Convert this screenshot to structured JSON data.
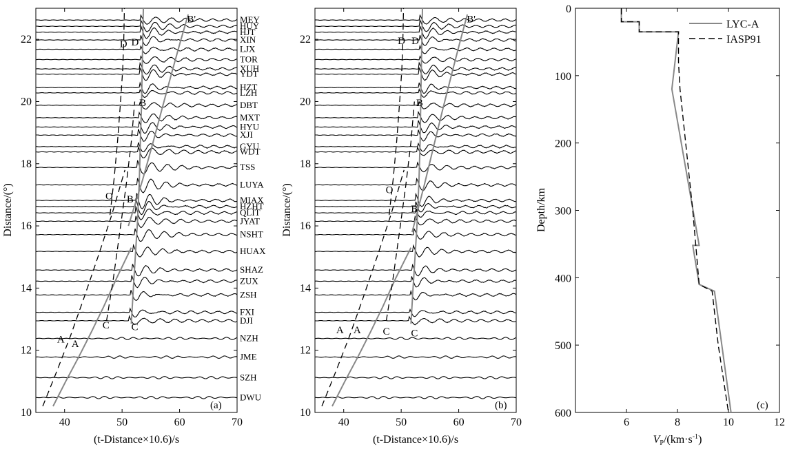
{
  "colors": {
    "gray_model": "#888888",
    "black": "#000000",
    "background": "#ffffff"
  },
  "panels": [
    {
      "id": "a",
      "panel_label": "(a)",
      "xlabel": "(t-Distance×10.6)/s",
      "ylabel": "Distance/(°)",
      "xlim": [
        35,
        70
      ],
      "ylim": [
        10,
        23
      ],
      "xticks": [
        "40",
        "50",
        "60",
        "70"
      ],
      "yticks": [
        "10",
        "12",
        "14",
        "16",
        "18",
        "20",
        "22"
      ],
      "branch_labels": [
        {
          "text": "A",
          "x": 38.7,
          "y": 12.25,
          "color": "black"
        },
        {
          "text": "A",
          "x": 41.2,
          "y": 12.1,
          "color": "gray"
        },
        {
          "text": "C",
          "x": 46.6,
          "y": 12.7,
          "color": "black"
        },
        {
          "text": "C",
          "x": 51.6,
          "y": 12.65,
          "color": "gray"
        },
        {
          "text": "O",
          "x": 47.1,
          "y": 16.85,
          "color": "black"
        },
        {
          "text": "B",
          "x": 50.8,
          "y": 16.75,
          "color": "gray"
        },
        {
          "text": "B",
          "x": 53.0,
          "y": 19.85,
          "color": "black"
        },
        {
          "text": "D",
          "x": 49.6,
          "y": 21.75,
          "color": "black"
        },
        {
          "text": "D",
          "x": 51.6,
          "y": 21.8,
          "color": "gray"
        },
        {
          "text": "B'",
          "x": 61.3,
          "y": 22.55,
          "color": "gray"
        }
      ]
    },
    {
      "id": "b",
      "panel_label": "(b)",
      "xlabel": "(t-Distance×10.6)/s",
      "ylabel": "Distance/(°)",
      "xlim": [
        35,
        70
      ],
      "ylim": [
        10,
        23
      ],
      "xticks": [
        "40",
        "50",
        "60",
        "70"
      ],
      "yticks": [
        "10",
        "12",
        "14",
        "16",
        "18",
        "20",
        "22"
      ],
      "branch_labels": [
        {
          "text": "A",
          "x": 38.7,
          "y": 12.55,
          "color": "black"
        },
        {
          "text": "A",
          "x": 41.7,
          "y": 12.55,
          "color": "gray"
        },
        {
          "text": "C",
          "x": 46.8,
          "y": 12.5,
          "color": "black"
        },
        {
          "text": "C",
          "x": 51.7,
          "y": 12.45,
          "color": "gray"
        },
        {
          "text": "O",
          "x": 47.3,
          "y": 17.05,
          "color": "black"
        },
        {
          "text": "B",
          "x": 51.7,
          "y": 16.45,
          "color": "gray"
        },
        {
          "text": "B",
          "x": 52.6,
          "y": 19.85,
          "color": "black"
        },
        {
          "text": "D",
          "x": 49.4,
          "y": 21.85,
          "color": "black"
        },
        {
          "text": "D",
          "x": 51.8,
          "y": 21.85,
          "color": "gray"
        },
        {
          "text": "B'",
          "x": 61.4,
          "y": 22.55,
          "color": "gray"
        }
      ]
    },
    {
      "id": "c",
      "panel_label": "(c)",
      "xlabel_v": "V",
      "xlabel_sub": "P",
      "xlabel_rest": "/(km·s",
      "xlabel_exp": "-1",
      "xlabel_end": ")",
      "ylabel": "Depth/km",
      "xlim": [
        4,
        12
      ],
      "ylim": [
        600,
        0
      ],
      "xticks": [
        "6",
        "8",
        "10",
        "12"
      ],
      "yticks": [
        "0",
        "100",
        "200",
        "300",
        "400",
        "500",
        "600"
      ]
    }
  ],
  "stations": [
    {
      "name": "MEY",
      "distance": 22.62
    },
    {
      "name": "HUY",
      "distance": 22.42
    },
    {
      "name": "HJT",
      "distance": 22.23
    },
    {
      "name": "XIN",
      "distance": 21.98
    },
    {
      "name": "LJX",
      "distance": 21.68
    },
    {
      "name": "TOR",
      "distance": 21.35
    },
    {
      "name": "XUH",
      "distance": 21.05
    },
    {
      "name": "YDT",
      "distance": 20.88
    },
    {
      "name": "HZT",
      "distance": 20.45
    },
    {
      "name": "LZH",
      "distance": 20.28
    },
    {
      "name": "DBT",
      "distance": 19.88
    },
    {
      "name": "MXT",
      "distance": 19.48
    },
    {
      "name": "HYU",
      "distance": 19.18
    },
    {
      "name": "XJI",
      "distance": 18.92
    },
    {
      "name": "GYU",
      "distance": 18.55
    },
    {
      "name": "WDT",
      "distance": 18.38
    },
    {
      "name": "TSS",
      "distance": 17.88
    },
    {
      "name": "LUYA",
      "distance": 17.32
    },
    {
      "name": "MIAX",
      "distance": 16.82
    },
    {
      "name": "HZHT",
      "distance": 16.62
    },
    {
      "name": "QLIT",
      "distance": 16.42
    },
    {
      "name": "JYAT",
      "distance": 16.15
    },
    {
      "name": "NSHT",
      "distance": 15.72
    },
    {
      "name": "HUAX",
      "distance": 15.18
    },
    {
      "name": "SHAZ",
      "distance": 14.58
    },
    {
      "name": "ZUX",
      "distance": 14.22
    },
    {
      "name": "ZSH",
      "distance": 13.78
    },
    {
      "name": "FXI",
      "distance": 13.22
    },
    {
      "name": "DJI",
      "distance": 12.95
    },
    {
      "name": "NZH",
      "distance": 12.38
    },
    {
      "name": "JME",
      "distance": 11.78
    },
    {
      "name": "SZH",
      "distance": 11.12
    },
    {
      "name": "DWU",
      "distance": 10.48
    }
  ],
  "chart_data": [
    {
      "panel": "a",
      "type": "line",
      "description_of_series": "Seismic record section; waveforms at station distances with predicted travel-time branches",
      "series": [
        {
          "style": "gray",
          "branch": "A-C",
          "x": [
            38.0,
            40.2,
            42.5,
            44.7,
            46.8,
            49.0,
            51.6
          ],
          "y": [
            10.2,
            11.0,
            11.8,
            12.6,
            13.4,
            14.3,
            15.3
          ]
        },
        {
          "style": "gray",
          "branch": "C-D",
          "x": [
            51.6,
            51.9,
            52.3,
            52.7,
            53.0,
            53.2,
            53.4,
            53.5,
            53.6,
            53.7
          ],
          "y": [
            12.85,
            13.8,
            15.0,
            16.2,
            17.5,
            18.8,
            20.0,
            21.0,
            22.0,
            23.0
          ]
        },
        {
          "style": "gray",
          "branch": "B-B'",
          "x": [
            51.1,
            53.6,
            55.4,
            57.0,
            58.6,
            60.1,
            61.5
          ],
          "y": [
            16.0,
            17.5,
            18.7,
            19.8,
            20.9,
            21.9,
            22.8
          ]
        },
        {
          "style": "black-dashed",
          "branch": "A",
          "x": [
            36.2,
            38.6,
            41.0,
            43.4,
            45.8,
            48.2,
            50.5
          ],
          "y": [
            10.2,
            11.3,
            12.45,
            13.7,
            15.0,
            16.35,
            17.8
          ]
        },
        {
          "style": "black-dashed",
          "branch": "C-B",
          "x": [
            47.3,
            48.4,
            49.6,
            50.7,
            51.6,
            52.2
          ],
          "y": [
            12.95,
            14.2,
            15.8,
            17.3,
            18.7,
            20.0
          ]
        },
        {
          "style": "black-dashed",
          "branch": "O-D",
          "x": [
            47.9,
            48.6,
            49.2,
            49.7,
            50.1,
            50.3,
            50.4
          ],
          "y": [
            16.35,
            17.5,
            18.7,
            19.9,
            21.0,
            22.0,
            23.0
          ]
        }
      ]
    },
    {
      "panel": "b",
      "type": "line",
      "series": [
        {
          "style": "gray",
          "branch": "A-C",
          "x": [
            38.0,
            40.2,
            42.5,
            44.7,
            46.8,
            49.0,
            51.7
          ],
          "y": [
            10.2,
            11.0,
            11.8,
            12.6,
            13.4,
            14.3,
            15.3
          ]
        },
        {
          "style": "gray",
          "branch": "C-D",
          "x": [
            51.7,
            52.0,
            52.4,
            52.8,
            53.1,
            53.3,
            53.4,
            53.5,
            53.6,
            53.7
          ],
          "y": [
            12.85,
            13.8,
            15.0,
            16.2,
            17.5,
            18.8,
            20.0,
            21.0,
            22.0,
            23.0
          ]
        },
        {
          "style": "gray",
          "branch": "B-B'",
          "x": [
            51.9,
            54.0,
            55.7,
            57.3,
            58.8,
            60.2,
            61.5
          ],
          "y": [
            15.8,
            17.3,
            18.6,
            19.8,
            20.9,
            21.9,
            22.8
          ]
        },
        {
          "style": "black-dashed",
          "branch": "A",
          "x": [
            36.2,
            38.6,
            41.0,
            43.4,
            45.8,
            48.2,
            50.5
          ],
          "y": [
            10.2,
            11.3,
            12.45,
            13.7,
            15.0,
            16.35,
            17.8
          ]
        },
        {
          "style": "black-dashed",
          "branch": "C-B",
          "x": [
            47.4,
            48.5,
            49.7,
            50.8,
            51.7,
            52.3
          ],
          "y": [
            12.95,
            14.2,
            15.8,
            17.3,
            18.7,
            20.0
          ]
        },
        {
          "style": "black-dashed",
          "branch": "O-D",
          "x": [
            47.9,
            48.6,
            49.2,
            49.7,
            50.1,
            50.3,
            50.4
          ],
          "y": [
            16.35,
            17.5,
            18.7,
            19.9,
            21.0,
            22.0,
            23.0
          ]
        }
      ]
    },
    {
      "panel": "c",
      "type": "line",
      "legend_position": "top-right",
      "series": [
        {
          "name": "LYC-A",
          "style": "gray-solid",
          "x": [
            5.8,
            5.8,
            6.5,
            6.5,
            8.04,
            7.78,
            8.85,
            8.6,
            8.85,
            9.45,
            10.1
          ],
          "y": [
            0,
            20,
            20,
            35,
            35,
            120,
            352,
            352,
            410,
            420,
            600
          ]
        },
        {
          "name": "IASP91",
          "style": "black-dashed",
          "x": [
            5.8,
            5.8,
            6.5,
            6.5,
            8.04,
            8.04,
            8.1,
            8.6,
            8.85,
            8.85,
            9.36,
            9.6,
            10.0
          ],
          "y": [
            0,
            20,
            20,
            35,
            35,
            80,
            120,
            300,
            410,
            410,
            420,
            500,
            600
          ]
        }
      ]
    }
  ]
}
